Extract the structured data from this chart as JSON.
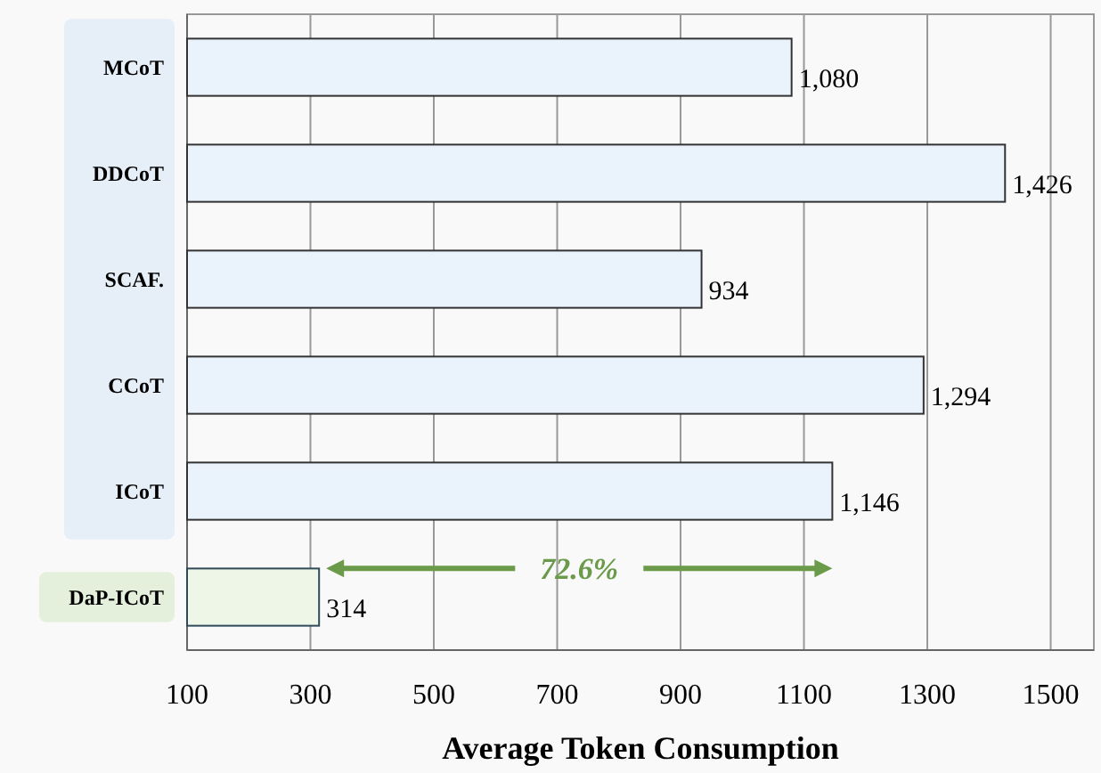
{
  "chart_data": {
    "type": "bar",
    "orientation": "horizontal",
    "xlabel": "Average Token Consumption",
    "categories": [
      "MCoT",
      "DDCoT",
      "SCAF.",
      "CCoT",
      "ICoT",
      "DaP-ICoT"
    ],
    "values": [
      1080,
      1426,
      934,
      1294,
      1146,
      314
    ],
    "value_labels": [
      "1,080",
      "1,426",
      "934",
      "1,294",
      "1,146",
      "314"
    ],
    "colors": [
      "#eaf2fc",
      "#eaf2fc",
      "#eaf2fc",
      "#eaf2fc",
      "#eaf2fc",
      "#eef6e8"
    ],
    "xlim": [
      100,
      1570
    ],
    "xticks": [
      100,
      300,
      500,
      700,
      900,
      1100,
      1300,
      1500
    ],
    "grid": "x",
    "annotations": [
      "72.6%"
    ]
  }
}
